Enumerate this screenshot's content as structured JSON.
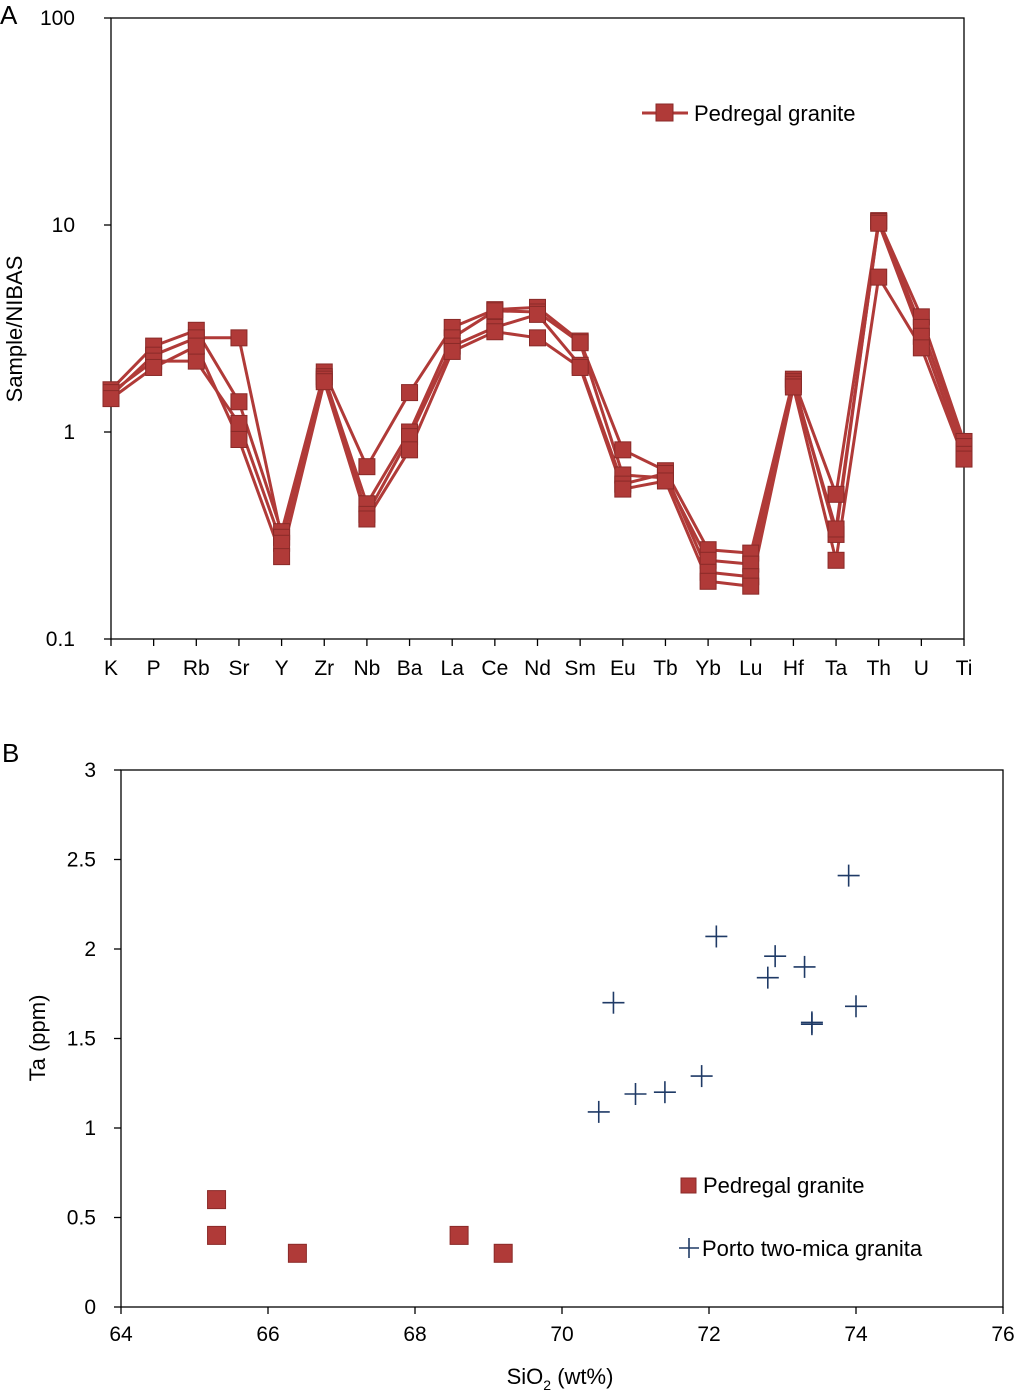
{
  "chart_data": [
    {
      "panel_label": "A",
      "type": "line",
      "title": "",
      "xlabel": "",
      "ylabel": "Sample/NIBAS",
      "yscale": "log",
      "ylim": [
        0.1,
        100
      ],
      "yticks": [
        "0.1",
        "1",
        "10",
        "100"
      ],
      "categories": [
        "K",
        "P",
        "Rb",
        "Sr",
        "Y",
        "Zr",
        "Nb",
        "Ba",
        "La",
        "Ce",
        "Nd",
        "Sm",
        "Eu",
        "Tb",
        "Yb",
        "Lu",
        "Hf",
        "Ta",
        "Th",
        "U",
        "Ti"
      ],
      "series_color": "#b03a38",
      "legend": {
        "label": "Pedregal granite",
        "position": "top-right"
      },
      "grid": false,
      "series": [
        {
          "values": [
            1.6,
            2.6,
            3.1,
            1.4,
            0.33,
            1.95,
            0.68,
            1.55,
            3.2,
            3.9,
            4.0,
            2.75,
            0.82,
            0.65,
            0.27,
            0.26,
            1.8,
            0.5,
            10.5,
            3.6,
            0.9
          ]
        },
        {
          "values": [
            1.5,
            2.35,
            2.85,
            2.85,
            0.31,
            1.85,
            0.45,
            1.0,
            2.85,
            3.85,
            3.8,
            2.7,
            0.62,
            0.6,
            0.24,
            0.23,
            1.75,
            0.32,
            10.4,
            3.2,
            0.85
          ]
        },
        {
          "values": [
            1.55,
            2.2,
            2.2,
            1.1,
            0.29,
            1.8,
            0.4,
            0.95,
            2.6,
            3.2,
            3.7,
            2.1,
            0.56,
            0.63,
            0.21,
            0.2,
            1.7,
            0.34,
            10.2,
            2.9,
            0.78
          ]
        },
        {
          "values": [
            1.45,
            2.05,
            2.6,
            0.92,
            0.25,
            1.75,
            0.38,
            0.82,
            2.45,
            3.05,
            2.85,
            2.05,
            0.53,
            0.58,
            0.19,
            0.18,
            1.65,
            0.24,
            5.6,
            2.55,
            0.74
          ]
        }
      ]
    },
    {
      "panel_label": "B",
      "type": "scatter",
      "title": "",
      "xlabel": "SiO",
      "xlabel_sub": "2",
      "xlabel_unit": " (wt%)",
      "ylabel": "Ta (ppm)",
      "xlim": [
        64,
        76
      ],
      "ylim": [
        0,
        3
      ],
      "xticks": [
        "64",
        "66",
        "68",
        "70",
        "72",
        "74",
        "76"
      ],
      "yticks": [
        "0",
        "0.5",
        "1",
        "1.5",
        "2",
        "2.5",
        "3"
      ],
      "grid": false,
      "legend_position": "bottom-right",
      "series": [
        {
          "name": "Pedregal granite",
          "marker": "square",
          "color": "#b03a38",
          "points": [
            [
              65.3,
              0.6
            ],
            [
              65.3,
              0.4
            ],
            [
              66.4,
              0.3
            ],
            [
              68.6,
              0.4
            ],
            [
              69.2,
              0.3
            ]
          ]
        },
        {
          "name": "Porto two-mica granita",
          "marker": "plus",
          "color": "#1f3a66",
          "points": [
            [
              70.5,
              1.09
            ],
            [
              70.7,
              1.7
            ],
            [
              71.0,
              1.19
            ],
            [
              71.4,
              1.2
            ],
            [
              71.9,
              1.29
            ],
            [
              72.1,
              2.07
            ],
            [
              72.8,
              1.84
            ],
            [
              72.9,
              1.96
            ],
            [
              73.3,
              1.9
            ],
            [
              73.4,
              1.58
            ],
            [
              73.4,
              1.59
            ],
            [
              73.9,
              2.41
            ],
            [
              74.0,
              1.68
            ]
          ]
        }
      ]
    }
  ]
}
